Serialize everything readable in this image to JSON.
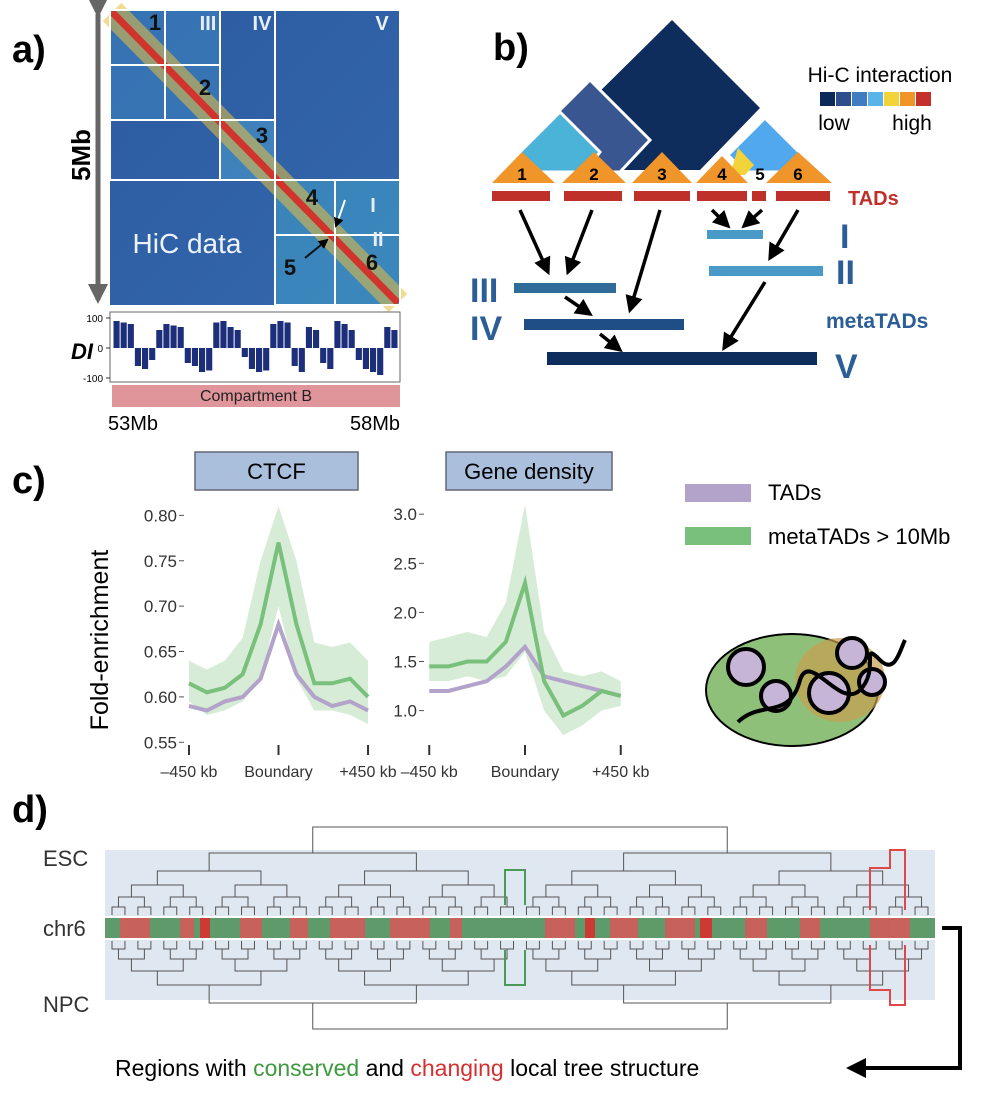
{
  "panel_labels": [
    "a)",
    "b)",
    "c)",
    "d)"
  ],
  "panel_a": {
    "size_label": "5Mb",
    "tad_labels": [
      "1",
      "2",
      "3",
      "4",
      "5",
      "6"
    ],
    "metatad_labels": [
      "I",
      "II",
      "III",
      "IV",
      "V"
    ],
    "data_label": "HiC data",
    "di": {
      "label": "DI",
      "ylim": [
        -100,
        100
      ],
      "yticks": [
        100,
        0,
        -100
      ],
      "values": [
        90,
        85,
        80,
        -60,
        -70,
        -40,
        60,
        80,
        75,
        70,
        -50,
        -60,
        -80,
        -75,
        85,
        90,
        70,
        60,
        -30,
        -70,
        -80,
        -75,
        80,
        90,
        85,
        -60,
        -80,
        70,
        60,
        -50,
        -70,
        90,
        80,
        60,
        -40,
        -70,
        -80,
        -90,
        70,
        60
      ]
    },
    "compartment": "Compartment B",
    "start": "53Mb",
    "end": "58Mb"
  },
  "panel_b": {
    "legend_title": "Hi-C interaction",
    "low": "low",
    "high": "high",
    "tad_labels": [
      "1",
      "2",
      "3",
      "4",
      "5",
      "6"
    ],
    "tads_label": "TADs",
    "metatad_labels": [
      "I",
      "II",
      "III",
      "IV",
      "V"
    ],
    "metatads_label": "metaTADs"
  },
  "chart_data": [
    {
      "type": "line",
      "title": "CTCF",
      "y_label": "Fold-enrichment",
      "x": [
        -450,
        -360,
        -270,
        -180,
        -90,
        0,
        90,
        180,
        270,
        360,
        450
      ],
      "xlim": [
        -470,
        470
      ],
      "xticks": [
        {
          "value": -450,
          "label": "–450 kb"
        },
        {
          "value": 0,
          "label": "Boundary"
        },
        {
          "value": 450,
          "label": "+450 kb"
        }
      ],
      "ylim": [
        0.547,
        0.85
      ],
      "yticks": [
        {
          "value": 0.8,
          "label": "0.80"
        },
        0.75,
        {
          "value": 0.7,
          "label": "0.70"
        },
        0.65,
        {
          "value": 0.6,
          "label": "0.60"
        },
        0.55
      ],
      "series": [
        {
          "name": "TADs",
          "color": "#b3a2c9",
          "values": [
            0.59,
            0.585,
            0.595,
            0.6,
            0.62,
            0.68,
            0.625,
            0.6,
            0.59,
            0.595,
            0.585
          ]
        },
        {
          "name": "metaTADs > 10Mb",
          "color": "#79c07c",
          "values": [
            0.615,
            0.605,
            0.61,
            0.625,
            0.68,
            0.77,
            0.68,
            0.615,
            0.615,
            0.62,
            0.6
          ],
          "lower": [
            0.595,
            0.58,
            0.585,
            0.595,
            0.62,
            0.7,
            0.62,
            0.585,
            0.585,
            0.58,
            0.57
          ],
          "upper": [
            0.64,
            0.63,
            0.64,
            0.665,
            0.75,
            0.81,
            0.75,
            0.66,
            0.655,
            0.66,
            0.64
          ]
        }
      ]
    },
    {
      "type": "line",
      "title": "Gene density",
      "x": [
        -450,
        -360,
        -270,
        -180,
        -90,
        0,
        90,
        180,
        270,
        360,
        450
      ],
      "xlim": [
        -470,
        470
      ],
      "xticks": [
        {
          "value": -450,
          "label": "–450 kb"
        },
        {
          "value": 0,
          "label": "Boundary"
        },
        {
          "value": 450,
          "label": "+450 kb"
        }
      ],
      "ylim": [
        0.65,
        3.45
      ],
      "yticks": [
        {
          "value": 3,
          "label": "3.0"
        },
        2.5,
        {
          "value": 2,
          "label": "2.0"
        },
        1.5,
        {
          "value": 1,
          "label": "1.0"
        }
      ],
      "series": [
        {
          "color": "#b3a2c9",
          "values": [
            1.2,
            1.2,
            1.25,
            1.3,
            1.45,
            1.65,
            1.35,
            1.3,
            1.25,
            1.2,
            1.15
          ]
        },
        {
          "color": "#79c07c",
          "values": [
            1.45,
            1.45,
            1.5,
            1.5,
            1.7,
            2.3,
            1.3,
            0.95,
            1.05,
            1.2,
            1.15
          ],
          "lower": [
            1.3,
            1.3,
            1.35,
            1.3,
            1.35,
            1.6,
            1.0,
            0.75,
            0.85,
            1.0,
            1.05
          ],
          "upper": [
            1.7,
            1.75,
            1.8,
            1.75,
            2.1,
            3.1,
            1.8,
            1.4,
            1.35,
            1.4,
            1.3
          ]
        }
      ]
    }
  ],
  "panel_d": {
    "top_label": "ESC",
    "strip_label": "chr6",
    "bottom_label": "NPC",
    "caption": [
      "Regions with ",
      "conserved",
      " and ",
      "changing",
      " local tree structure"
    ]
  }
}
